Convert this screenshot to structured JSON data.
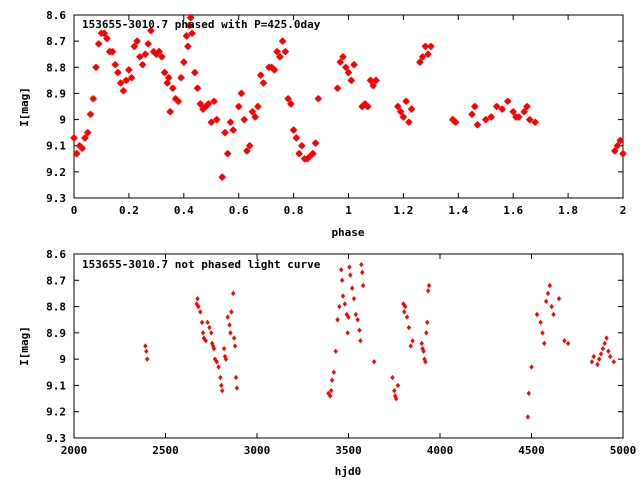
{
  "chart_data": [
    {
      "type": "scatter",
      "title": "153655-3010.7 phased with P=425.0day",
      "xlabel": "phase",
      "ylabel": "I[mag]",
      "xlim": [
        0,
        2
      ],
      "ylim": [
        9.3,
        8.6
      ],
      "y_inverted": true,
      "x_ticks": [
        0,
        0.2,
        0.4,
        0.6,
        0.8,
        1,
        1.2,
        1.4,
        1.6,
        1.8,
        2
      ],
      "x_tick_labels": [
        "0",
        "0.2",
        "0.4",
        "0.6",
        "0.8",
        "1",
        "1.2",
        "1.4",
        "1.6",
        "1.8",
        "2"
      ],
      "y_ticks": [
        8.6,
        8.7,
        8.8,
        8.9,
        9.0,
        9.1,
        9.2,
        9.3
      ],
      "y_tick_labels": [
        "8.6",
        "8.7",
        "8.8",
        "8.9",
        "9",
        "9.1",
        "9.2",
        "9.3"
      ],
      "marker_color": "#ff0000",
      "marker": "star",
      "points": [
        [
          0.0,
          9.07
        ],
        [
          0.01,
          9.13
        ],
        [
          0.02,
          9.1
        ],
        [
          0.03,
          9.11
        ],
        [
          0.04,
          9.07
        ],
        [
          0.05,
          9.05
        ],
        [
          0.06,
          8.98
        ],
        [
          0.07,
          8.92
        ],
        [
          0.08,
          8.8
        ],
        [
          0.09,
          8.71
        ],
        [
          0.1,
          8.67
        ],
        [
          0.11,
          8.67
        ],
        [
          0.12,
          8.69
        ],
        [
          0.13,
          8.74
        ],
        [
          0.14,
          8.74
        ],
        [
          0.15,
          8.79
        ],
        [
          0.16,
          8.82
        ],
        [
          0.17,
          8.86
        ],
        [
          0.18,
          8.89
        ],
        [
          0.19,
          8.85
        ],
        [
          0.2,
          8.81
        ],
        [
          0.21,
          8.84
        ],
        [
          0.22,
          8.72
        ],
        [
          0.23,
          8.7
        ],
        [
          0.24,
          8.76
        ],
        [
          0.25,
          8.79
        ],
        [
          0.26,
          8.75
        ],
        [
          0.27,
          8.71
        ],
        [
          0.28,
          8.66
        ],
        [
          0.29,
          8.74
        ],
        [
          0.3,
          8.75
        ],
        [
          0.31,
          8.74
        ],
        [
          0.32,
          8.76
        ],
        [
          0.33,
          8.82
        ],
        [
          0.34,
          8.86
        ],
        [
          0.345,
          8.84
        ],
        [
          0.35,
          8.97
        ],
        [
          0.36,
          8.88
        ],
        [
          0.37,
          8.92
        ],
        [
          0.38,
          8.93
        ],
        [
          0.39,
          8.84
        ],
        [
          0.4,
          8.78
        ],
        [
          0.41,
          8.68
        ],
        [
          0.415,
          8.72
        ],
        [
          0.42,
          8.64
        ],
        [
          0.425,
          8.61
        ],
        [
          0.43,
          8.67
        ],
        [
          0.44,
          8.82
        ],
        [
          0.45,
          8.88
        ],
        [
          0.46,
          8.94
        ],
        [
          0.47,
          8.96
        ],
        [
          0.48,
          8.95
        ],
        [
          0.49,
          8.94
        ],
        [
          0.5,
          9.01
        ],
        [
          0.51,
          8.93
        ],
        [
          0.52,
          9.0
        ],
        [
          0.54,
          9.22
        ],
        [
          0.55,
          9.05
        ],
        [
          0.56,
          9.13
        ],
        [
          0.57,
          9.01
        ],
        [
          0.58,
          9.04
        ],
        [
          0.6,
          8.95
        ],
        [
          0.61,
          8.9
        ],
        [
          0.62,
          9.0
        ],
        [
          0.63,
          9.12
        ],
        [
          0.64,
          9.1
        ],
        [
          0.65,
          8.97
        ],
        [
          0.66,
          8.99
        ],
        [
          0.67,
          8.95
        ],
        [
          0.68,
          8.83
        ],
        [
          0.69,
          8.86
        ],
        [
          0.71,
          8.8
        ],
        [
          0.72,
          8.8
        ],
        [
          0.73,
          8.81
        ],
        [
          0.74,
          8.74
        ],
        [
          0.75,
          8.76
        ],
        [
          0.76,
          8.7
        ],
        [
          0.77,
          8.74
        ],
        [
          0.78,
          8.92
        ],
        [
          0.79,
          8.94
        ],
        [
          0.8,
          9.04
        ],
        [
          0.81,
          9.07
        ],
        [
          0.82,
          9.13
        ],
        [
          0.83,
          9.1
        ],
        [
          0.84,
          9.15
        ],
        [
          0.85,
          9.15
        ],
        [
          0.86,
          9.14
        ],
        [
          0.87,
          9.13
        ],
        [
          0.88,
          9.09
        ],
        [
          0.89,
          8.92
        ],
        [
          0.96,
          8.88
        ],
        [
          0.97,
          8.78
        ],
        [
          0.98,
          8.76
        ],
        [
          0.99,
          8.8
        ],
        [
          1.0,
          8.82
        ],
        [
          1.01,
          8.85
        ],
        [
          1.02,
          8.79
        ],
        [
          1.05,
          8.95
        ],
        [
          1.06,
          8.94
        ],
        [
          1.07,
          8.95
        ],
        [
          1.08,
          8.85
        ],
        [
          1.09,
          8.87
        ],
        [
          1.1,
          8.85
        ],
        [
          1.18,
          8.95
        ],
        [
          1.19,
          8.97
        ],
        [
          1.2,
          8.99
        ],
        [
          1.21,
          8.93
        ],
        [
          1.22,
          9.01
        ],
        [
          1.23,
          8.96
        ],
        [
          1.26,
          8.78
        ],
        [
          1.27,
          8.76
        ],
        [
          1.28,
          8.72
        ],
        [
          1.29,
          8.75
        ],
        [
          1.3,
          8.72
        ],
        [
          1.38,
          9.0
        ],
        [
          1.39,
          9.01
        ],
        [
          1.45,
          8.98
        ],
        [
          1.46,
          8.95
        ],
        [
          1.47,
          9.02
        ],
        [
          1.5,
          9.0
        ],
        [
          1.52,
          8.99
        ],
        [
          1.54,
          8.95
        ],
        [
          1.56,
          8.96
        ],
        [
          1.58,
          8.93
        ],
        [
          1.6,
          8.97
        ],
        [
          1.61,
          8.99
        ],
        [
          1.62,
          8.99
        ],
        [
          1.64,
          8.97
        ],
        [
          1.65,
          8.95
        ],
        [
          1.66,
          9.0
        ],
        [
          1.68,
          9.01
        ],
        [
          1.97,
          9.12
        ],
        [
          1.98,
          9.1
        ],
        [
          1.99,
          9.08
        ],
        [
          2.0,
          9.13
        ]
      ]
    },
    {
      "type": "scatter",
      "title": "153655-3010.7 not phased light curve",
      "xlabel": "hjd0",
      "ylabel": "I[mag]",
      "xlim": [
        2000,
        5000
      ],
      "ylim": [
        9.3,
        8.6
      ],
      "y_inverted": true,
      "x_ticks": [
        2000,
        2500,
        3000,
        3500,
        4000,
        4500,
        5000
      ],
      "x_tick_labels": [
        "2000",
        "2500",
        "3000",
        "3500",
        "4000",
        "4500",
        "5000"
      ],
      "y_ticks": [
        8.6,
        8.7,
        8.8,
        8.9,
        9.0,
        9.1,
        9.2,
        9.3
      ],
      "y_tick_labels": [
        "8.6",
        "8.7",
        "8.8",
        "8.9",
        "9",
        "9.1",
        "9.2",
        "9.3"
      ],
      "marker_color": "#ff0000",
      "marker": "diamond",
      "points": [
        [
          2390,
          8.95
        ],
        [
          2395,
          8.97
        ],
        [
          2400,
          9.0
        ],
        [
          2670,
          8.79
        ],
        [
          2675,
          8.77
        ],
        [
          2680,
          8.8
        ],
        [
          2690,
          8.82
        ],
        [
          2700,
          8.86
        ],
        [
          2705,
          8.9
        ],
        [
          2710,
          8.92
        ],
        [
          2720,
          8.93
        ],
        [
          2730,
          8.86
        ],
        [
          2740,
          8.88
        ],
        [
          2750,
          8.9
        ],
        [
          2755,
          8.94
        ],
        [
          2760,
          8.95
        ],
        [
          2765,
          8.96
        ],
        [
          2770,
          9.0
        ],
        [
          2780,
          9.01
        ],
        [
          2790,
          9.03
        ],
        [
          2800,
          9.07
        ],
        [
          2805,
          9.1
        ],
        [
          2810,
          9.12
        ],
        [
          2820,
          8.96
        ],
        [
          2825,
          8.99
        ],
        [
          2830,
          9.0
        ],
        [
          2840,
          8.84
        ],
        [
          2850,
          8.87
        ],
        [
          2855,
          8.9
        ],
        [
          2860,
          8.82
        ],
        [
          2870,
          8.75
        ],
        [
          2875,
          8.92
        ],
        [
          2880,
          8.95
        ],
        [
          2885,
          9.07
        ],
        [
          2890,
          9.11
        ],
        [
          3390,
          9.13
        ],
        [
          3400,
          9.14
        ],
        [
          3405,
          9.12
        ],
        [
          3410,
          9.08
        ],
        [
          3420,
          9.05
        ],
        [
          3430,
          8.97
        ],
        [
          3440,
          8.85
        ],
        [
          3450,
          8.8
        ],
        [
          3460,
          8.66
        ],
        [
          3465,
          8.7
        ],
        [
          3470,
          8.76
        ],
        [
          3480,
          8.79
        ],
        [
          3490,
          8.83
        ],
        [
          3495,
          8.9
        ],
        [
          3500,
          8.84
        ],
        [
          3505,
          8.65
        ],
        [
          3510,
          8.68
        ],
        [
          3520,
          8.73
        ],
        [
          3530,
          8.77
        ],
        [
          3540,
          8.83
        ],
        [
          3550,
          8.85
        ],
        [
          3560,
          8.89
        ],
        [
          3565,
          8.93
        ],
        [
          3570,
          8.64
        ],
        [
          3575,
          8.67
        ],
        [
          3580,
          8.72
        ],
        [
          3640,
          9.01
        ],
        [
          3740,
          9.07
        ],
        [
          3750,
          9.12
        ],
        [
          3755,
          9.14
        ],
        [
          3760,
          9.15
        ],
        [
          3770,
          9.1
        ],
        [
          3800,
          8.79
        ],
        [
          3805,
          8.82
        ],
        [
          3810,
          8.8
        ],
        [
          3820,
          8.84
        ],
        [
          3830,
          8.88
        ],
        [
          3840,
          8.95
        ],
        [
          3850,
          8.93
        ],
        [
          3900,
          8.94
        ],
        [
          3905,
          8.96
        ],
        [
          3910,
          8.97
        ],
        [
          3915,
          9.0
        ],
        [
          3920,
          9.01
        ],
        [
          3925,
          8.9
        ],
        [
          3930,
          8.86
        ],
        [
          3935,
          8.74
        ],
        [
          3940,
          8.72
        ],
        [
          4480,
          9.22
        ],
        [
          4485,
          9.13
        ],
        [
          4500,
          9.03
        ],
        [
          4530,
          8.83
        ],
        [
          4550,
          8.86
        ],
        [
          4560,
          8.9
        ],
        [
          4570,
          8.94
        ],
        [
          4580,
          8.78
        ],
        [
          4590,
          8.75
        ],
        [
          4600,
          8.72
        ],
        [
          4610,
          8.8
        ],
        [
          4620,
          8.83
        ],
        [
          4650,
          8.77
        ],
        [
          4680,
          8.93
        ],
        [
          4700,
          8.94
        ],
        [
          4830,
          9.01
        ],
        [
          4840,
          8.99
        ],
        [
          4860,
          9.02
        ],
        [
          4870,
          9.0
        ],
        [
          4880,
          8.98
        ],
        [
          4890,
          8.96
        ],
        [
          4900,
          8.94
        ],
        [
          4910,
          8.92
        ],
        [
          4920,
          8.97
        ],
        [
          4930,
          8.99
        ],
        [
          4950,
          9.01
        ]
      ]
    }
  ]
}
